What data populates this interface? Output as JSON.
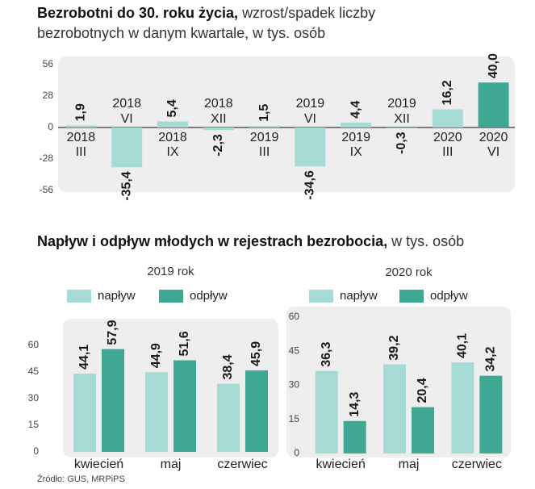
{
  "chart_data": [
    {
      "type": "bar",
      "title": "Bezrobotni do 30. roku życia,",
      "subtitle": "wzrost/spadek liczby bezrobotnych w danym kwartale, w tys. osób",
      "categories": [
        [
          "2018",
          "III"
        ],
        [
          "2018",
          "VI"
        ],
        [
          "2018",
          "IX"
        ],
        [
          "2018",
          "XII"
        ],
        [
          "2019",
          "III"
        ],
        [
          "2019",
          "VI"
        ],
        [
          "2019",
          "IX"
        ],
        [
          "2019",
          "XII"
        ],
        [
          "2020",
          "III"
        ],
        [
          "2020",
          "VI"
        ]
      ],
      "values": [
        1.9,
        -35.4,
        5.4,
        -2.3,
        1.5,
        -34.6,
        4.4,
        -0.3,
        16.2,
        40.0
      ],
      "value_labels": [
        "1,9",
        "-35,4",
        "5,4",
        "-2,3",
        "1,5",
        "-34,6",
        "4,4",
        "-0,3",
        "16,2",
        "40,0"
      ],
      "colors": [
        "#a6dbd5",
        "#a6dbd5",
        "#a6dbd5",
        "#a6dbd5",
        "#a6dbd5",
        "#a6dbd5",
        "#a6dbd5",
        "#a6dbd5",
        "#a6dbd5",
        "#3ea894"
      ],
      "ylim": [
        -56,
        56
      ],
      "yticks": [
        56,
        28,
        0,
        -28,
        -56
      ]
    },
    {
      "type": "grouped_bar",
      "title": "2019 rok",
      "categories": [
        "kwiecień",
        "maj",
        "czerwiec"
      ],
      "series": [
        {
          "name": "napływ",
          "color": "#a6dbd5",
          "values": [
            44.1,
            44.9,
            38.4
          ],
          "value_labels": [
            "44,1",
            "44,9",
            "38,4"
          ]
        },
        {
          "name": "odpływ",
          "color": "#3ea894",
          "values": [
            57.9,
            51.6,
            45.9
          ],
          "value_labels": [
            "57,9",
            "51,6",
            "45,9"
          ]
        }
      ],
      "ylim": [
        0,
        60
      ],
      "yticks": [
        0,
        15,
        30,
        45,
        60
      ]
    },
    {
      "type": "grouped_bar",
      "title": "2020 rok",
      "categories": [
        "kwiecień",
        "maj",
        "czerwiec"
      ],
      "series": [
        {
          "name": "napływ",
          "color": "#a6dbd5",
          "values": [
            36.3,
            39.2,
            40.1
          ],
          "value_labels": [
            "36,3",
            "39,2",
            "40,1"
          ]
        },
        {
          "name": "odpływ",
          "color": "#3ea894",
          "values": [
            14.3,
            20.4,
            34.2
          ],
          "value_labels": [
            "14,3",
            "20,4",
            "34,2"
          ]
        }
      ],
      "ylim": [
        0,
        60
      ],
      "yticks": [
        0,
        15,
        30,
        45,
        60
      ]
    }
  ],
  "section_title": "Napływ i odpływ młodych w rejestrach bezrobocia,",
  "section_subtitle": "w tys. osób",
  "source": "Źródło: GUS, MRPiPS"
}
